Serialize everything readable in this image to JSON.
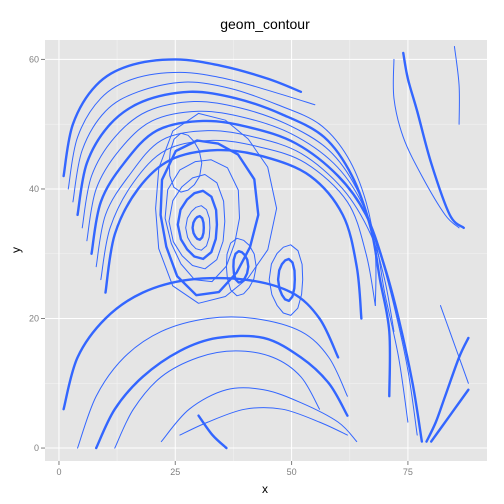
{
  "chart_data": {
    "type": "contour",
    "title": "geom_contour",
    "xlabel": "x",
    "ylabel": "y",
    "xlim": [
      -3,
      92
    ],
    "ylim": [
      -2,
      63
    ],
    "x_ticks": [
      0,
      25,
      50,
      75
    ],
    "y_ticks": [
      0,
      20,
      40,
      60
    ],
    "grid": true,
    "line_color": "#3366FF",
    "panel_color": "#E5E5E5",
    "peaks": [
      {
        "x": 30,
        "y": 34
      },
      {
        "x": 39,
        "y": 28
      },
      {
        "x": 49,
        "y": 26
      }
    ],
    "contours": [
      {
        "weight": "thick",
        "points": [
          [
            1,
            42
          ],
          [
            3,
            50
          ],
          [
            8,
            56
          ],
          [
            15,
            59
          ],
          [
            25,
            60
          ],
          [
            35,
            59
          ],
          [
            45,
            57
          ],
          [
            52,
            55
          ]
        ]
      },
      {
        "weight": "thin",
        "points": [
          [
            2,
            40
          ],
          [
            4,
            48
          ],
          [
            9,
            54
          ],
          [
            16,
            57
          ],
          [
            26,
            58
          ],
          [
            36,
            57
          ],
          [
            46,
            55
          ],
          [
            55,
            53
          ]
        ]
      },
      {
        "weight": "thin",
        "points": [
          [
            3,
            38
          ],
          [
            5,
            46
          ],
          [
            10,
            52
          ],
          [
            17,
            55
          ],
          [
            27,
            56.5
          ],
          [
            37,
            55.5
          ],
          [
            47,
            53
          ],
          [
            56,
            50
          ],
          [
            62,
            45
          ],
          [
            66,
            38
          ],
          [
            68,
            30
          ],
          [
            68,
            22
          ]
        ]
      },
      {
        "weight": "thick",
        "points": [
          [
            4,
            36
          ],
          [
            6,
            44
          ],
          [
            11,
            50
          ],
          [
            18,
            53.5
          ],
          [
            28,
            55
          ],
          [
            38,
            54
          ],
          [
            48,
            51.5
          ],
          [
            57,
            48
          ],
          [
            63,
            42
          ],
          [
            67,
            34
          ],
          [
            69,
            26
          ],
          [
            71,
            18
          ],
          [
            71,
            8
          ]
        ]
      },
      {
        "weight": "thin",
        "points": [
          [
            5,
            34
          ],
          [
            7,
            42
          ],
          [
            12,
            48
          ],
          [
            19,
            52
          ],
          [
            29,
            53.5
          ],
          [
            39,
            52.5
          ],
          [
            49,
            50
          ],
          [
            58,
            46
          ],
          [
            64,
            40
          ],
          [
            68,
            32
          ],
          [
            70,
            24
          ],
          [
            73,
            14
          ],
          [
            75,
            4
          ]
        ]
      },
      {
        "weight": "thin",
        "points": [
          [
            6,
            32
          ],
          [
            8,
            40
          ],
          [
            13,
            46
          ],
          [
            20,
            50.5
          ],
          [
            30,
            52
          ],
          [
            40,
            51
          ],
          [
            50,
            48.5
          ],
          [
            59,
            44
          ],
          [
            65,
            38
          ],
          [
            69,
            30
          ],
          [
            72,
            22
          ],
          [
            75,
            12
          ],
          [
            77,
            2
          ]
        ]
      },
      {
        "weight": "thick",
        "points": [
          [
            7,
            30
          ],
          [
            9,
            38
          ],
          [
            14,
            44
          ],
          [
            21,
            49
          ],
          [
            31,
            50.5
          ],
          [
            41,
            49.5
          ],
          [
            51,
            47
          ],
          [
            60,
            42
          ],
          [
            66,
            36
          ],
          [
            70,
            28
          ],
          [
            73,
            20
          ],
          [
            76,
            10
          ],
          [
            78,
            1
          ]
        ]
      },
      {
        "weight": "thin",
        "points": [
          [
            8,
            28
          ],
          [
            10,
            36
          ],
          [
            15,
            42
          ],
          [
            22,
            47.5
          ],
          [
            32,
            49
          ],
          [
            42,
            48
          ],
          [
            52,
            45.5
          ],
          [
            61,
            40
          ],
          [
            67,
            33
          ],
          [
            70,
            26
          ],
          [
            72,
            18
          ]
        ]
      },
      {
        "weight": "thin",
        "points": [
          [
            9,
            26
          ],
          [
            11,
            34
          ],
          [
            16,
            41
          ],
          [
            23,
            46
          ],
          [
            33,
            47.5
          ],
          [
            43,
            46.5
          ],
          [
            53,
            44
          ],
          [
            62,
            38
          ],
          [
            66,
            30
          ],
          [
            68,
            22
          ]
        ]
      },
      {
        "weight": "thick",
        "points": [
          [
            10,
            24
          ],
          [
            12,
            33
          ],
          [
            17,
            40
          ],
          [
            24,
            44.5
          ],
          [
            34,
            46
          ],
          [
            44,
            45
          ],
          [
            54,
            42
          ],
          [
            61,
            36
          ],
          [
            64,
            28
          ],
          [
            65,
            20
          ]
        ]
      },
      {
        "weight": "thin",
        "points": [
          [
            86,
            34
          ],
          [
            83,
            36
          ],
          [
            78,
            42
          ],
          [
            74,
            48
          ],
          [
            72,
            54
          ],
          [
            72,
            60
          ]
        ]
      },
      {
        "weight": "thick",
        "points": [
          [
            87,
            34
          ],
          [
            84,
            36
          ],
          [
            80,
            44
          ],
          [
            77,
            52
          ],
          [
            75,
            57
          ],
          [
            74,
            61
          ]
        ]
      },
      {
        "weight": "thin",
        "points": [
          [
            88,
            10
          ],
          [
            86,
            14
          ],
          [
            84,
            18
          ],
          [
            82,
            22
          ]
        ]
      },
      {
        "weight": "thick",
        "points": [
          [
            88,
            17
          ],
          [
            86,
            14
          ],
          [
            83,
            8
          ],
          [
            81,
            4
          ],
          [
            79,
            1
          ]
        ]
      },
      {
        "weight": "thick",
        "points": [
          [
            88,
            9
          ],
          [
            85,
            6
          ],
          [
            82,
            3
          ],
          [
            80,
            1
          ]
        ]
      },
      {
        "weight": "thin",
        "points": [
          [
            85,
            62
          ],
          [
            86,
            56
          ],
          [
            86,
            50
          ]
        ]
      },
      {
        "weight": "thick",
        "points": [
          [
            30,
            5
          ],
          [
            33,
            2
          ],
          [
            36,
            0
          ]
        ]
      },
      {
        "weight": "thin",
        "points": [
          [
            22,
            1
          ],
          [
            28,
            6
          ],
          [
            36,
            9
          ],
          [
            44,
            9
          ],
          [
            52,
            7
          ],
          [
            60,
            4
          ],
          [
            64,
            1
          ]
        ]
      },
      {
        "weight": "thin",
        "points": [
          [
            26,
            2
          ],
          [
            32,
            4
          ],
          [
            40,
            6
          ],
          [
            48,
            6
          ],
          [
            56,
            4
          ],
          [
            62,
            2
          ]
        ]
      },
      {
        "weight": "thick",
        "points": [
          [
            8,
            0
          ],
          [
            12,
            6
          ],
          [
            18,
            11
          ],
          [
            26,
            15
          ],
          [
            34,
            17
          ],
          [
            44,
            17
          ],
          [
            52,
            14
          ],
          [
            58,
            10
          ],
          [
            62,
            5
          ]
        ]
      },
      {
        "weight": "thin",
        "points": [
          [
            12,
            0
          ],
          [
            16,
            6
          ],
          [
            22,
            11
          ],
          [
            30,
            14
          ],
          [
            38,
            15
          ],
          [
            46,
            14
          ],
          [
            52,
            11
          ],
          [
            56,
            6
          ]
        ]
      },
      {
        "weight": "thin",
        "points": [
          [
            4,
            0
          ],
          [
            8,
            8
          ],
          [
            14,
            14
          ],
          [
            22,
            18
          ],
          [
            32,
            20
          ],
          [
            42,
            20
          ],
          [
            52,
            18
          ],
          [
            58,
            14
          ],
          [
            62,
            8
          ]
        ]
      },
      {
        "weight": "thick",
        "points": [
          [
            1,
            6
          ],
          [
            4,
            14
          ],
          [
            10,
            20
          ],
          [
            18,
            24
          ],
          [
            28,
            26
          ],
          [
            40,
            26
          ],
          [
            50,
            24
          ],
          [
            56,
            20
          ],
          [
            60,
            14
          ]
        ]
      }
    ],
    "closed_contours": [
      {
        "weight": "thick",
        "cx": 30,
        "cy": 34,
        "rx": 1.2,
        "ry": 1.8
      },
      {
        "weight": "thin",
        "cx": 30,
        "cy": 34,
        "rx": 2.6,
        "ry": 3.4
      },
      {
        "weight": "thick",
        "cx": 30,
        "cy": 34.5,
        "rx": 4.2,
        "ry": 5.2
      },
      {
        "weight": "thin",
        "cx": 30,
        "cy": 35,
        "rx": 6,
        "ry": 7.2
      },
      {
        "weight": "thin",
        "cx": 31,
        "cy": 35.5,
        "rx": 8,
        "ry": 9.5
      },
      {
        "weight": "thick",
        "cx": 32,
        "cy": 36,
        "rx": 10.5,
        "ry": 12
      },
      {
        "weight": "thin",
        "cx": 33,
        "cy": 37,
        "rx": 13,
        "ry": 14.5
      },
      {
        "weight": "thick",
        "cx": 39,
        "cy": 28,
        "rx": 1.6,
        "ry": 2.4
      },
      {
        "weight": "thin",
        "cx": 39,
        "cy": 28,
        "rx": 3.2,
        "ry": 4.4
      },
      {
        "weight": "thick",
        "cx": 49,
        "cy": 26,
        "rx": 1.8,
        "ry": 3.2
      },
      {
        "weight": "thin",
        "cx": 49,
        "cy": 26,
        "rx": 3.6,
        "ry": 5.4
      },
      {
        "weight": "thin",
        "cx": 27,
        "cy": 44,
        "rx": 3.5,
        "ry": 4.5
      }
    ]
  }
}
